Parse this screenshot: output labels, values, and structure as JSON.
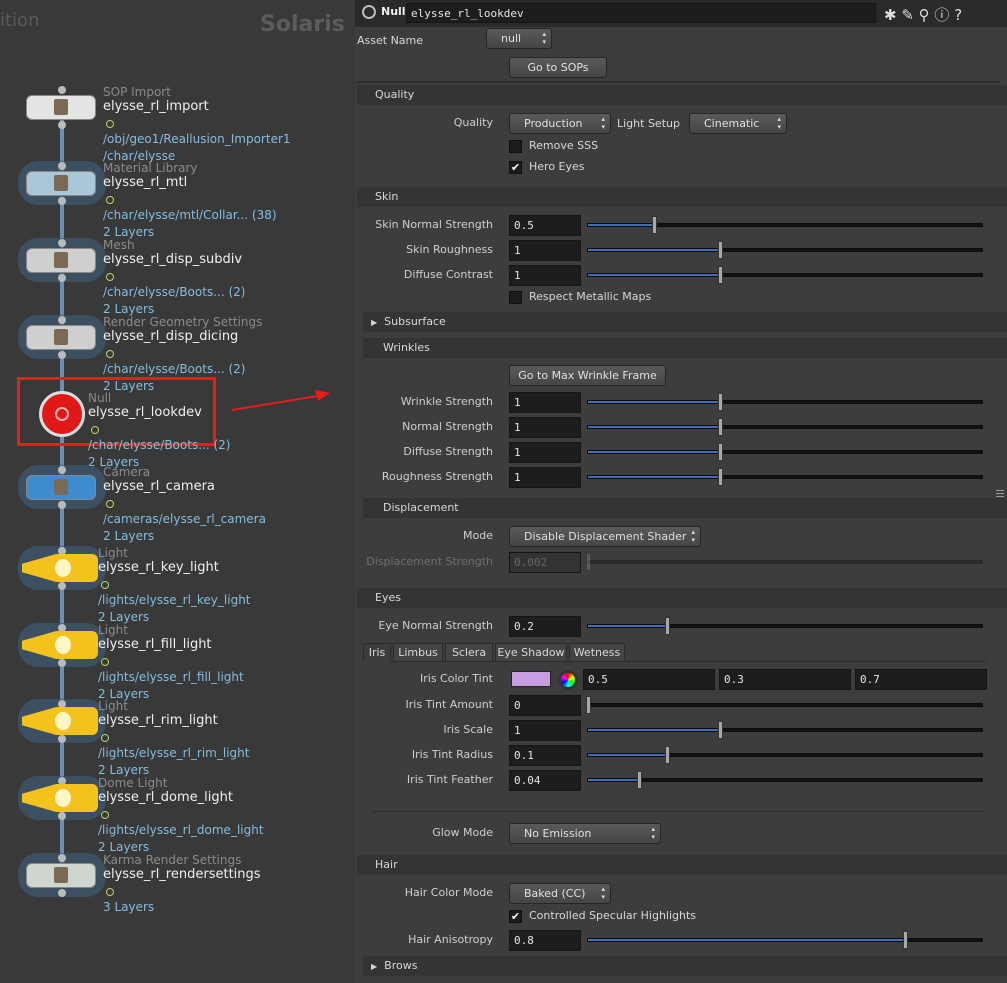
{
  "network": {
    "header_left": "ition",
    "context": "Solaris",
    "nodes": [
      {
        "type": "SOP Import",
        "name": "elysse_rl_import",
        "info": [
          "/obj/geo1/Reallusion_Importer1",
          "/char/elysse"
        ]
      },
      {
        "type": "Material Library",
        "name": "elysse_rl_mtl",
        "info": [
          "/char/elysse/mtl/Collar... (38)",
          "2 Layers"
        ]
      },
      {
        "type": "Mesh",
        "name": "elysse_rl_disp_subdiv",
        "info": [
          "/char/elysse/Boots... (2)",
          "2 Layers"
        ]
      },
      {
        "type": "Render Geometry Settings",
        "name": "elysse_rl_disp_dicing",
        "info": [
          "/char/elysse/Boots... (2)",
          "2 Layers"
        ]
      },
      {
        "type": "Null",
        "name": "elysse_rl_lookdev",
        "info": [
          "/char/elysse/Boots... (2)",
          "2 Layers"
        ]
      },
      {
        "type": "Camera",
        "name": "elysse_rl_camera",
        "info": [
          "/cameras/elysse_rl_camera",
          "2 Layers"
        ]
      },
      {
        "type": "Light",
        "name": "elysse_rl_key_light",
        "info": [
          "/lights/elysse_rl_key_light",
          "2 Layers"
        ]
      },
      {
        "type": "Light",
        "name": "elysse_rl_fill_light",
        "info": [
          "/lights/elysse_rl_fill_light",
          "2 Layers"
        ]
      },
      {
        "type": "Light",
        "name": "elysse_rl_rim_light",
        "info": [
          "/lights/elysse_rl_rim_light",
          "2 Layers"
        ]
      },
      {
        "type": "Dome Light",
        "name": "elysse_rl_dome_light",
        "info": [
          "/lights/elysse_rl_dome_light",
          "2 Layers"
        ]
      },
      {
        "type": "Karma Render Settings",
        "name": "elysse_rl_rendersettings",
        "info": [
          "3 Layers"
        ]
      }
    ]
  },
  "params": {
    "header": {
      "node_type": "Null",
      "node_name": "elysse_rl_lookdev"
    },
    "asset_name": {
      "label": "Asset Name",
      "value": "null"
    },
    "go_to_sops": "Go to SOPs",
    "quality": {
      "title": "Quality",
      "quality": {
        "label": "Quality",
        "value": "Production"
      },
      "light_setup": {
        "label": "Light Setup",
        "value": "Cinematic"
      },
      "remove_sss": {
        "label": "Remove SSS",
        "checked": false
      },
      "hero_eyes": {
        "label": "Hero Eyes",
        "checked": true
      }
    },
    "skin": {
      "title": "Skin",
      "rows": [
        {
          "label": "Skin Normal Strength",
          "value": "0.5"
        },
        {
          "label": "Skin Roughness",
          "value": "1"
        },
        {
          "label": "Diffuse Contrast",
          "value": "1"
        }
      ],
      "respect_metallic": {
        "label": "Respect Metallic Maps",
        "checked": false
      }
    },
    "subsurface": {
      "title": "Subsurface"
    },
    "wrinkles": {
      "title": "Wrinkles",
      "button": "Go to Max Wrinkle Frame",
      "rows": [
        {
          "label": "Wrinkle Strength",
          "value": "1"
        },
        {
          "label": "Normal Strength",
          "value": "1"
        },
        {
          "label": "Diffuse Strength",
          "value": "1"
        },
        {
          "label": "Roughness Strength",
          "value": "1"
        }
      ]
    },
    "displacement": {
      "title": "Displacement",
      "mode": {
        "label": "Mode",
        "value": "Disable Displacement Shader"
      },
      "strength": {
        "label": "Displacement Strength",
        "value": "0.002"
      }
    },
    "eyes": {
      "title": "Eyes",
      "eye_normal_strength": {
        "label": "Eye Normal Strength",
        "value": "0.2"
      },
      "tabs": [
        "Iris",
        "Limbus",
        "Sclera",
        "Eye Shadow",
        "Wetness"
      ],
      "iris_color_tint": {
        "label": "Iris Color Tint",
        "color": "#c99ee0",
        "values": [
          "0.5",
          "0.3",
          "0.7"
        ]
      },
      "rows": [
        {
          "label": "Iris Tint Amount",
          "value": "0"
        },
        {
          "label": "Iris Scale",
          "value": "1"
        },
        {
          "label": "Iris Tint Radius",
          "value": "0.1"
        },
        {
          "label": "Iris Tint Feather",
          "value": "0.04"
        }
      ],
      "glow_mode": {
        "label": "Glow Mode",
        "value": "No Emission"
      }
    },
    "hair": {
      "title": "Hair",
      "hair_color_mode": {
        "label": "Hair Color Mode",
        "value": "Baked (CC)"
      },
      "controlled_specular": {
        "label": "Controlled Specular Highlights",
        "checked": true
      },
      "hair_anisotropy": {
        "label": "Hair Anisotropy",
        "value": "0.8"
      }
    },
    "brows": {
      "title": "Brows"
    }
  }
}
